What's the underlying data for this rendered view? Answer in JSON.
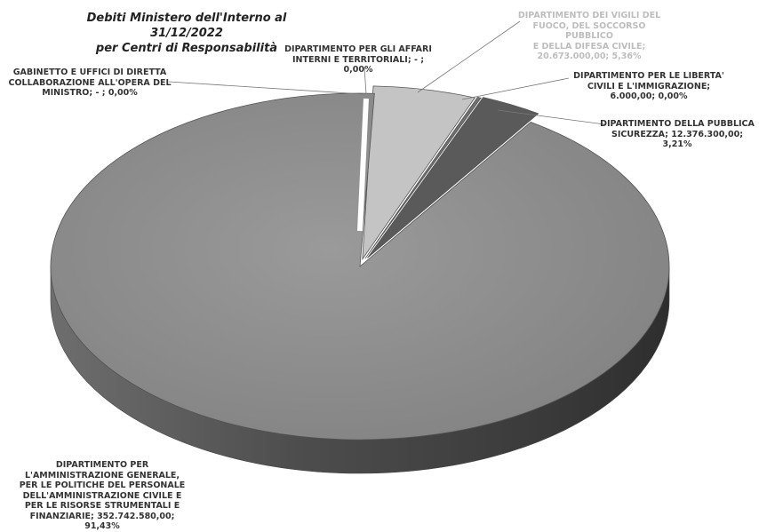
{
  "chart_data": {
    "type": "pie",
    "title": "Debiti Ministero dell'Interno al 31/12/2022\nper Centri di Responsabilità",
    "slices": [
      {
        "label": "DIPARTIMENTO PER L'AMMINISTRAZIONE GENERALE, PER LE POLITICHE DEL PERSONALE DELL'AMMINISTRAZIONE CIVILE E PER LE RISORSE STRUMENTALI E FINANZIARIE",
        "value": 352742580.0,
        "value_text": "352.742.580,00",
        "percent": 91.43,
        "percent_text": "91,43%",
        "color": "#8a8a8a"
      },
      {
        "label": "DIPARTIMENTO DEI VIGILI DEL FUOCO, DEL SOCCORSO PUBBLICO E DELLA DIFESA CIVILE",
        "value": 20673000.0,
        "value_text": "20.673.000,00",
        "percent": 5.36,
        "percent_text": "5,36%",
        "color": "#c4c4c4"
      },
      {
        "label": "DIPARTIMENTO PER LE LIBERTA' CIVILI E L'IMMIGRAZIONE",
        "value": 6000.0,
        "value_text": "6.000,00",
        "percent": 0.0,
        "percent_text": "0,00%",
        "color": "#707070"
      },
      {
        "label": "DIPARTIMENTO DELLA PUBBLICA SICUREZZA",
        "value": 12376300.0,
        "value_text": "12.376.300,00",
        "percent": 3.21,
        "percent_text": "3,21%",
        "color": "#5a5a5a"
      },
      {
        "label": "GABINETTO E UFFICI DI DIRETTA COLLABORAZIONE ALL'OPERA DEL MINISTRO",
        "value": 0,
        "value_text": "-",
        "percent": 0.0,
        "percent_text": "0,00%",
        "color": "#9a9a9a"
      },
      {
        "label": "DIPARTIMENTO PER GLI AFFARI INTERNI E TERRITORIALI",
        "value": 0,
        "value_text": "-",
        "percent": 0.0,
        "percent_text": "0,00%",
        "color": "#9a9a9a"
      }
    ]
  },
  "labels": {
    "title": "Debiti Ministero dell'Interno al 31/12/2022\nper Centri di Responsabilità",
    "gabinetto": "GABINETTO E UFFICI DI DIRETTA\nCOLLABORAZIONE ALL'OPERA DEL\nMINISTRO;  -  ; 0,00%",
    "affari_interni": "DIPARTIMENTO PER GLI AFFARI\nINTERNI E TERRITORIALI;  -  ;\n0,00%",
    "vigili_fuoco": "DIPARTIMENTO DEI VIGILI DEL\nFUOCO, DEL SOCCORSO PUBBLICO\nE DELLA DIFESA CIVILE;\n20.673.000,00; 5,36%",
    "liberta_civili": "DIPARTIMENTO PER LE LIBERTA'\nCIVILI E L'IMMIGRAZIONE;\n6.000,00; 0,00%",
    "pubblica_sicurezza": "DIPARTIMENTO DELLA PUBBLICA\nSICUREZZA;  12.376.300,00;\n3,21%",
    "amministrazione": "DIPARTIMENTO PER\nL'AMMINISTRAZIONE GENERALE,\nPER LE POLITICHE DEL PERSONALE\nDELL'AMMINISTRAZIONE CIVILE E\nPER LE RISORSE STRUMENTALI E\nFINANZIARIE;  352.742.580,00;\n91,43%"
  }
}
